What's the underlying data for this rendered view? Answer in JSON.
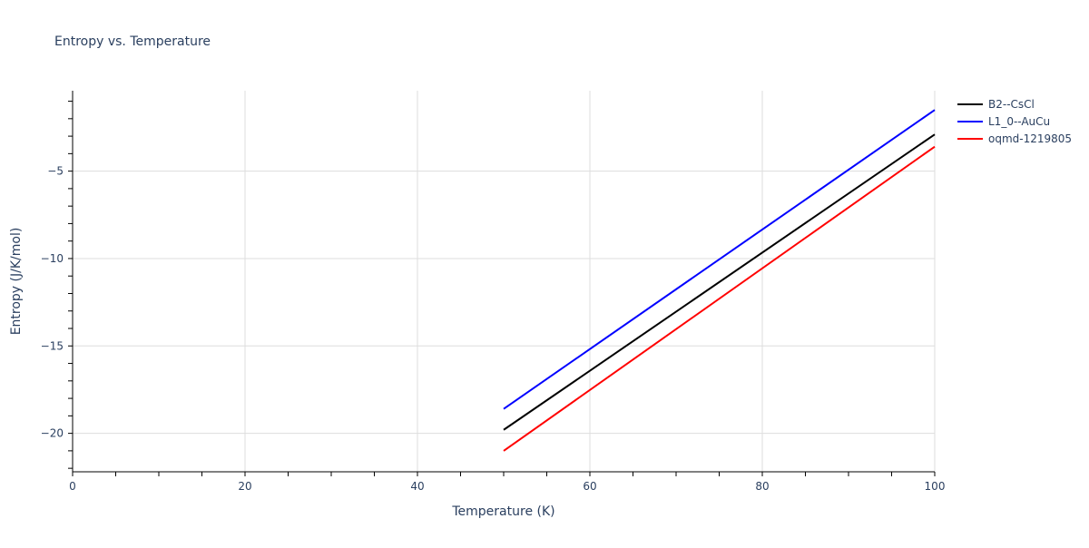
{
  "chart_data": {
    "type": "line",
    "title": "Entropy vs. Temperature",
    "xlabel": "Temperature (K)",
    "ylabel": "Entropy (J/K/mol)",
    "xlim": [
      0,
      100
    ],
    "ylim": [
      -22.2,
      -0.4
    ],
    "xticks": [
      0,
      20,
      40,
      60,
      80,
      100
    ],
    "xtick_labels": [
      "0",
      "20",
      "40",
      "60",
      "80",
      "100"
    ],
    "yticks": [
      -5,
      -10,
      -15,
      -20
    ],
    "ytick_labels": [
      "−5",
      "−10",
      "−15",
      "−20"
    ],
    "grid": true,
    "legend_position": "top-right",
    "series": [
      {
        "name": "B2--CsCl",
        "color": "#000000",
        "x": [
          50,
          100
        ],
        "y": [
          -19.8,
          -2.9
        ]
      },
      {
        "name": "L1_0--AuCu",
        "color": "#0000ff",
        "x": [
          50,
          100
        ],
        "y": [
          -18.6,
          -1.5
        ]
      },
      {
        "name": "oqmd-1219805",
        "color": "#ff0000",
        "x": [
          50,
          100
        ],
        "y": [
          -21.0,
          -3.6
        ]
      }
    ]
  }
}
